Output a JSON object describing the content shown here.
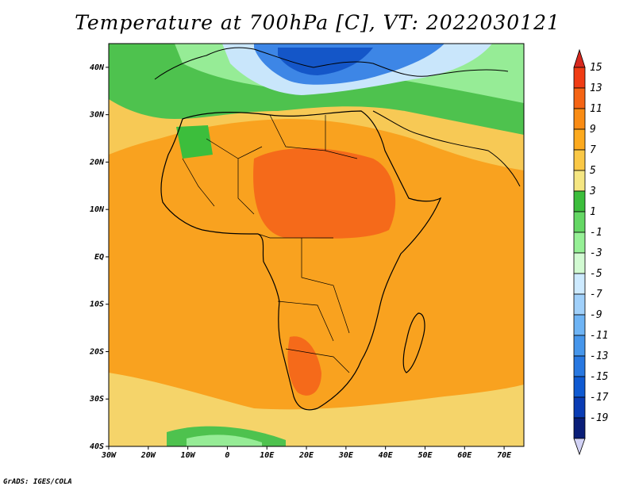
{
  "title": "Temperature at 700hPa [C], VT: 2022030121",
  "credit": "GrADS: IGES/COLA",
  "map": {
    "lon_range": [
      -30,
      75
    ],
    "lat_range": [
      -40,
      45
    ],
    "lat_ticks": [
      "40N",
      "30N",
      "20N",
      "10N",
      "EQ",
      "10S",
      "20S",
      "30S",
      "40S"
    ],
    "lon_ticks": [
      "30W",
      "20W",
      "10W",
      "0",
      "10E",
      "20E",
      "30E",
      "40E",
      "50E",
      "60E",
      "70E"
    ]
  },
  "colorbar": {
    "labels": [
      "15",
      "13",
      "11",
      "9",
      "7",
      "5",
      "3",
      "1",
      "-1",
      "-3",
      "-5",
      "-7",
      "-9",
      "-11",
      "-13",
      "-15",
      "-17",
      "-19"
    ],
    "colors": [
      "#f03c14",
      "#f56414",
      "#fa8c14",
      "#fdaa1e",
      "#fac846",
      "#f5e682",
      "#3cbe3c",
      "#64d764",
      "#96f096",
      "#d2fad2",
      "#cdeaff",
      "#a0d0fa",
      "#6eb4f5",
      "#4696eb",
      "#2878e1",
      "#0f5ad2",
      "#0a3cb4",
      "#0a1e78"
    ],
    "top_color": "#d7281e",
    "bottom_color": "#d2d2f5"
  }
}
